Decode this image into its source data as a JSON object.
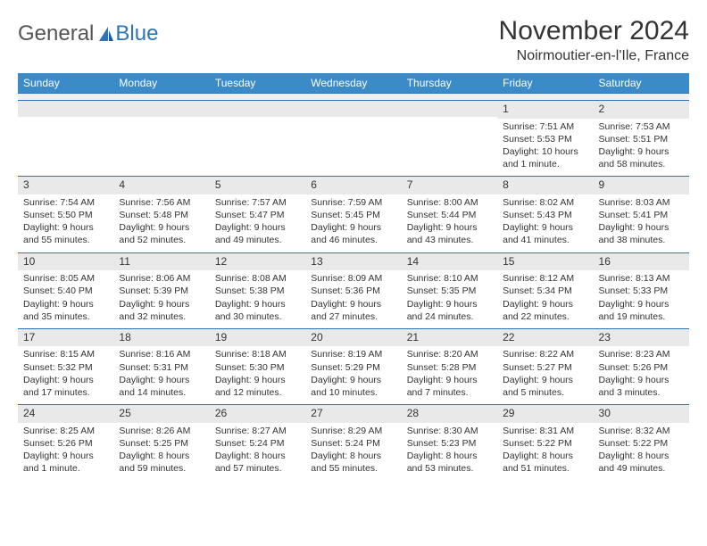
{
  "brand": {
    "part1": "General",
    "part2": "Blue"
  },
  "title": "November 2024",
  "location": "Noirmoutier-en-l'Ile, France",
  "colors": {
    "header_bg": "#3b8bc9",
    "header_text": "#ffffff",
    "rule": "#2e75b6",
    "daynum_bg": "#e9e9e9",
    "text": "#333333",
    "brand_gray": "#555555",
    "brand_blue": "#2e75b6",
    "page_bg": "#ffffff"
  },
  "days_of_week": [
    "Sunday",
    "Monday",
    "Tuesday",
    "Wednesday",
    "Thursday",
    "Friday",
    "Saturday"
  ],
  "weeks": [
    [
      null,
      null,
      null,
      null,
      null,
      {
        "n": "1",
        "sr": "Sunrise: 7:51 AM",
        "ss": "Sunset: 5:53 PM",
        "dl": "Daylight: 10 hours and 1 minute."
      },
      {
        "n": "2",
        "sr": "Sunrise: 7:53 AM",
        "ss": "Sunset: 5:51 PM",
        "dl": "Daylight: 9 hours and 58 minutes."
      }
    ],
    [
      {
        "n": "3",
        "sr": "Sunrise: 7:54 AM",
        "ss": "Sunset: 5:50 PM",
        "dl": "Daylight: 9 hours and 55 minutes."
      },
      {
        "n": "4",
        "sr": "Sunrise: 7:56 AM",
        "ss": "Sunset: 5:48 PM",
        "dl": "Daylight: 9 hours and 52 minutes."
      },
      {
        "n": "5",
        "sr": "Sunrise: 7:57 AM",
        "ss": "Sunset: 5:47 PM",
        "dl": "Daylight: 9 hours and 49 minutes."
      },
      {
        "n": "6",
        "sr": "Sunrise: 7:59 AM",
        "ss": "Sunset: 5:45 PM",
        "dl": "Daylight: 9 hours and 46 minutes."
      },
      {
        "n": "7",
        "sr": "Sunrise: 8:00 AM",
        "ss": "Sunset: 5:44 PM",
        "dl": "Daylight: 9 hours and 43 minutes."
      },
      {
        "n": "8",
        "sr": "Sunrise: 8:02 AM",
        "ss": "Sunset: 5:43 PM",
        "dl": "Daylight: 9 hours and 41 minutes."
      },
      {
        "n": "9",
        "sr": "Sunrise: 8:03 AM",
        "ss": "Sunset: 5:41 PM",
        "dl": "Daylight: 9 hours and 38 minutes."
      }
    ],
    [
      {
        "n": "10",
        "sr": "Sunrise: 8:05 AM",
        "ss": "Sunset: 5:40 PM",
        "dl": "Daylight: 9 hours and 35 minutes."
      },
      {
        "n": "11",
        "sr": "Sunrise: 8:06 AM",
        "ss": "Sunset: 5:39 PM",
        "dl": "Daylight: 9 hours and 32 minutes."
      },
      {
        "n": "12",
        "sr": "Sunrise: 8:08 AM",
        "ss": "Sunset: 5:38 PM",
        "dl": "Daylight: 9 hours and 30 minutes."
      },
      {
        "n": "13",
        "sr": "Sunrise: 8:09 AM",
        "ss": "Sunset: 5:36 PM",
        "dl": "Daylight: 9 hours and 27 minutes."
      },
      {
        "n": "14",
        "sr": "Sunrise: 8:10 AM",
        "ss": "Sunset: 5:35 PM",
        "dl": "Daylight: 9 hours and 24 minutes."
      },
      {
        "n": "15",
        "sr": "Sunrise: 8:12 AM",
        "ss": "Sunset: 5:34 PM",
        "dl": "Daylight: 9 hours and 22 minutes."
      },
      {
        "n": "16",
        "sr": "Sunrise: 8:13 AM",
        "ss": "Sunset: 5:33 PM",
        "dl": "Daylight: 9 hours and 19 minutes."
      }
    ],
    [
      {
        "n": "17",
        "sr": "Sunrise: 8:15 AM",
        "ss": "Sunset: 5:32 PM",
        "dl": "Daylight: 9 hours and 17 minutes."
      },
      {
        "n": "18",
        "sr": "Sunrise: 8:16 AM",
        "ss": "Sunset: 5:31 PM",
        "dl": "Daylight: 9 hours and 14 minutes."
      },
      {
        "n": "19",
        "sr": "Sunrise: 8:18 AM",
        "ss": "Sunset: 5:30 PM",
        "dl": "Daylight: 9 hours and 12 minutes."
      },
      {
        "n": "20",
        "sr": "Sunrise: 8:19 AM",
        "ss": "Sunset: 5:29 PM",
        "dl": "Daylight: 9 hours and 10 minutes."
      },
      {
        "n": "21",
        "sr": "Sunrise: 8:20 AM",
        "ss": "Sunset: 5:28 PM",
        "dl": "Daylight: 9 hours and 7 minutes."
      },
      {
        "n": "22",
        "sr": "Sunrise: 8:22 AM",
        "ss": "Sunset: 5:27 PM",
        "dl": "Daylight: 9 hours and 5 minutes."
      },
      {
        "n": "23",
        "sr": "Sunrise: 8:23 AM",
        "ss": "Sunset: 5:26 PM",
        "dl": "Daylight: 9 hours and 3 minutes."
      }
    ],
    [
      {
        "n": "24",
        "sr": "Sunrise: 8:25 AM",
        "ss": "Sunset: 5:26 PM",
        "dl": "Daylight: 9 hours and 1 minute."
      },
      {
        "n": "25",
        "sr": "Sunrise: 8:26 AM",
        "ss": "Sunset: 5:25 PM",
        "dl": "Daylight: 8 hours and 59 minutes."
      },
      {
        "n": "26",
        "sr": "Sunrise: 8:27 AM",
        "ss": "Sunset: 5:24 PM",
        "dl": "Daylight: 8 hours and 57 minutes."
      },
      {
        "n": "27",
        "sr": "Sunrise: 8:29 AM",
        "ss": "Sunset: 5:24 PM",
        "dl": "Daylight: 8 hours and 55 minutes."
      },
      {
        "n": "28",
        "sr": "Sunrise: 8:30 AM",
        "ss": "Sunset: 5:23 PM",
        "dl": "Daylight: 8 hours and 53 minutes."
      },
      {
        "n": "29",
        "sr": "Sunrise: 8:31 AM",
        "ss": "Sunset: 5:22 PM",
        "dl": "Daylight: 8 hours and 51 minutes."
      },
      {
        "n": "30",
        "sr": "Sunrise: 8:32 AM",
        "ss": "Sunset: 5:22 PM",
        "dl": "Daylight: 8 hours and 49 minutes."
      }
    ]
  ]
}
